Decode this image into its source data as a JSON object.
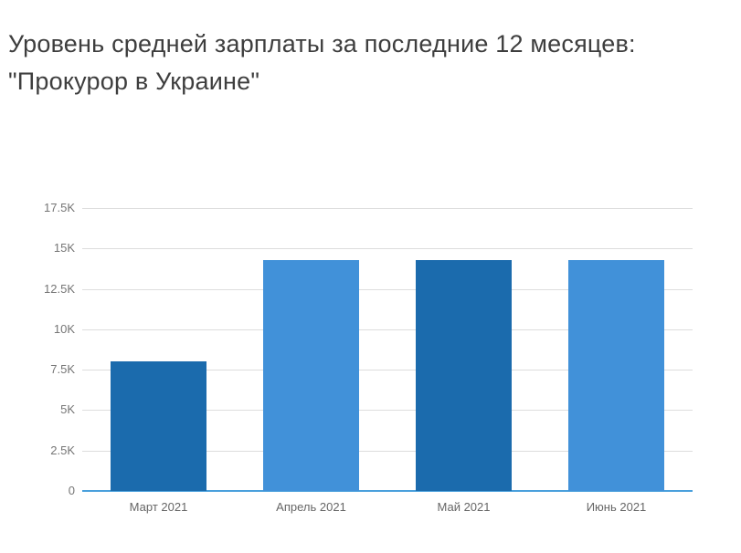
{
  "header": {
    "title_lines": [
      "Уровень средней зарплаты за последние 12 месяцев:",
      "\"Прокурор в Украине\""
    ]
  },
  "chart_data": {
    "type": "bar",
    "title": "Уровень средней зарплаты за последние 12 месяцев: \"Прокурор в Украине\"",
    "categories": [
      "Март 2021",
      "Апрель 2021",
      "Май 2021",
      "Июнь 2021"
    ],
    "values": [
      8000,
      14300,
      14300,
      14300
    ],
    "bar_colors": [
      "#1b6bad",
      "#4191d9",
      "#1b6bad",
      "#4191d9"
    ],
    "yticks": [
      {
        "label": "0",
        "value": 0
      },
      {
        "label": "2.5K",
        "value": 2500
      },
      {
        "label": "5K",
        "value": 5000
      },
      {
        "label": "7.5K",
        "value": 7500
      },
      {
        "label": "10K",
        "value": 10000
      },
      {
        "label": "12.5K",
        "value": 12500
      },
      {
        "label": "15K",
        "value": 15000
      },
      {
        "label": "17.5K",
        "value": 17500
      }
    ],
    "ylim": [
      0,
      17500
    ],
    "xlabel": "",
    "ylabel": "",
    "grid": true,
    "legend": false,
    "axis_color": "#4aa0dc",
    "grid_color": "#dddddd",
    "tick_label_color": "#757575",
    "title_color": "#3e3e3e"
  }
}
